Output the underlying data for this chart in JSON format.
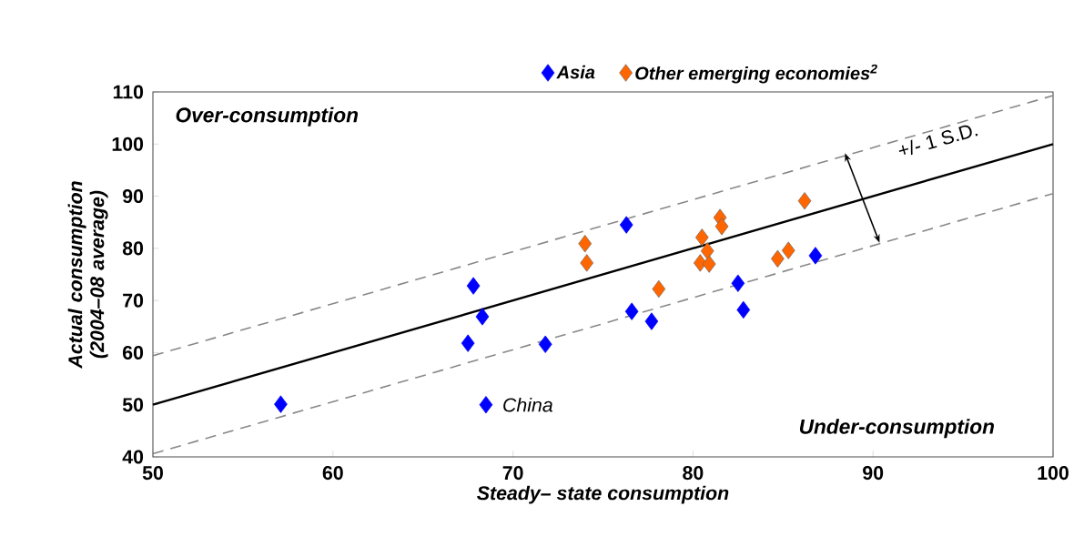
{
  "chart_data": {
    "type": "scatter",
    "xlabel": "Steady– state consumption",
    "ylabel": "Actual consumption (2004–08 average)",
    "xlim": [
      50,
      100
    ],
    "ylim": [
      40,
      110
    ],
    "xticks": [
      50,
      60,
      70,
      80,
      90,
      100
    ],
    "yticks": [
      40,
      50,
      60,
      70,
      80,
      90,
      100,
      110
    ],
    "legend": "top",
    "marker": "diamond",
    "series": [
      {
        "type": "line",
        "color": "#000000",
        "marker": "none",
        "x": [
          50,
          100
        ],
        "values": [
          50,
          100
        ]
      },
      {
        "type": "line",
        "color": "#888888",
        "marker": "none",
        "line_style": "dashed",
        "x": [
          50,
          100
        ],
        "values": [
          59.4,
          109.3
        ]
      },
      {
        "type": "line",
        "color": "#888888",
        "marker": "none",
        "line_style": "dashed",
        "x": [
          50,
          100
        ],
        "values": [
          40.6,
          90.5
        ]
      },
      {
        "name": "Asia",
        "color": "#0000ff",
        "x": [
          57.1,
          67.5,
          67.8,
          68.3,
          68.5,
          71.8,
          76.3,
          76.6,
          77.7,
          82.5,
          82.8,
          86.8
        ],
        "values": [
          50.1,
          61.8,
          72.8,
          66.9,
          50.0,
          61.6,
          84.5,
          67.9,
          66.0,
          73.3,
          68.2,
          78.6
        ]
      },
      {
        "name": "Other emerging economies$^{2}$",
        "color": "#ff6600",
        "x": [
          74.0,
          74.1,
          78.1,
          80.5,
          80.8,
          80.4,
          80.9,
          81.5,
          81.6,
          84.7,
          85.3,
          86.2
        ],
        "values": [
          80.9,
          77.2,
          72.2,
          82.1,
          79.5,
          77.2,
          77.0,
          85.9,
          84.2,
          78.0,
          79.6,
          89.1
        ]
      }
    ],
    "annotations": [
      "Over-consumption",
      "Under-consumption",
      {
        "text": "China",
        "x": 68.5,
        "y": 50.0
      },
      "+/- 1 S.D."
    ]
  }
}
